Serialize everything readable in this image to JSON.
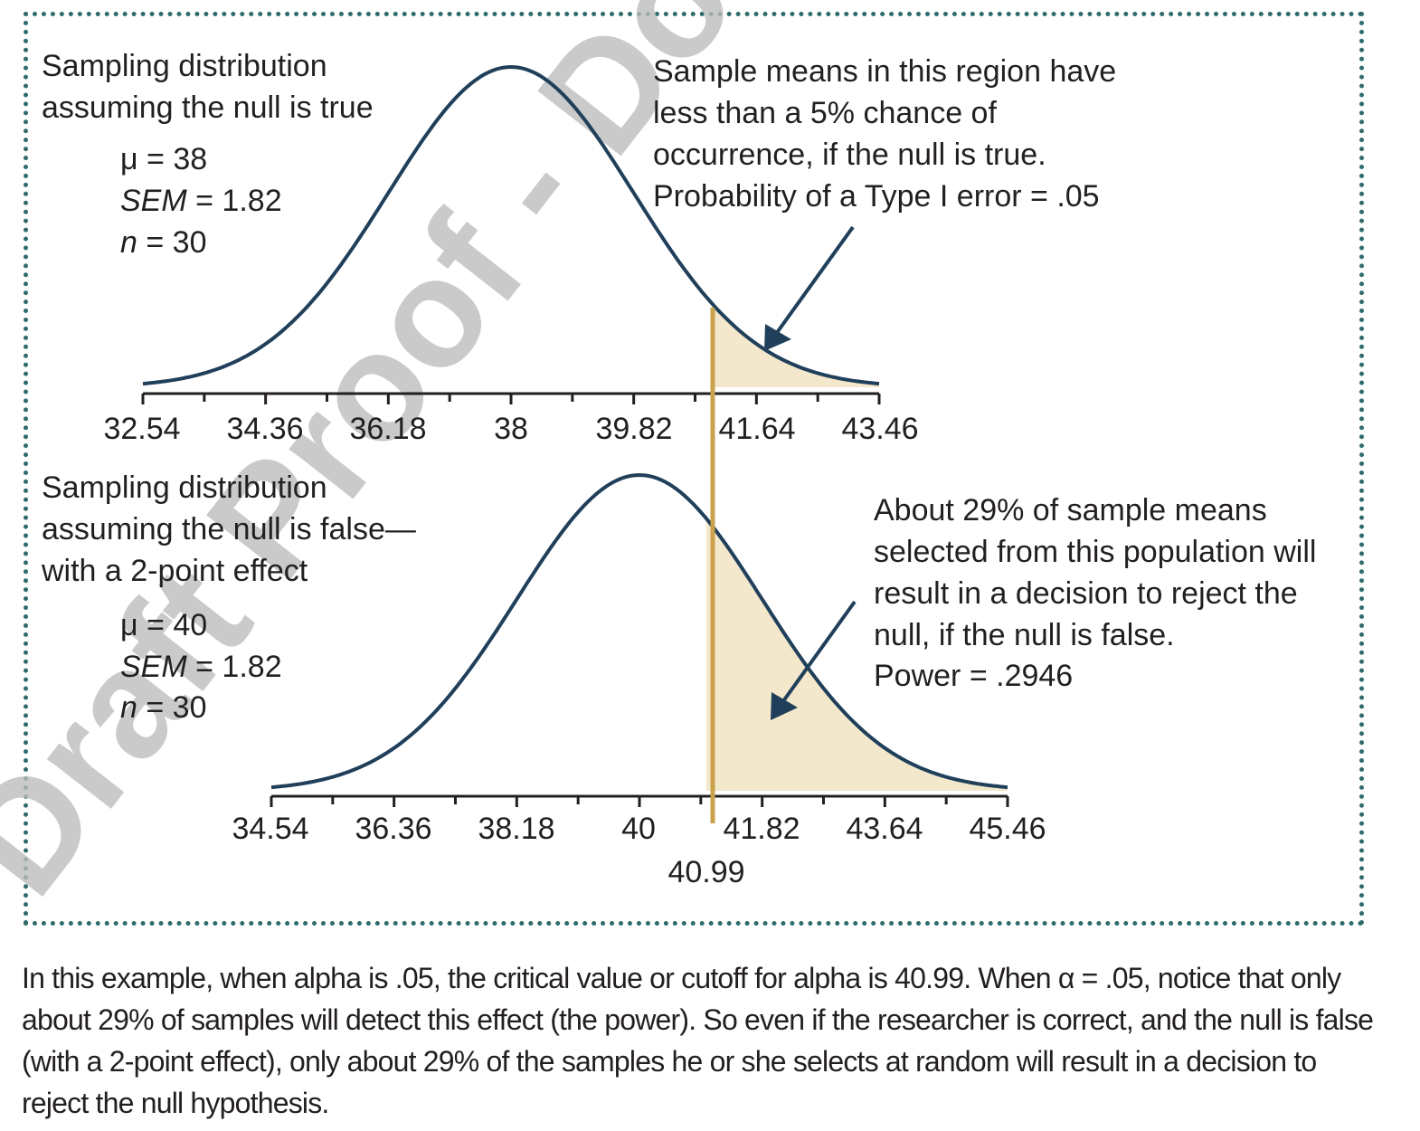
{
  "colors": {
    "curve": "#1f3f5a",
    "shade": "#f3e8cc",
    "cutoff_line": "#c9a24b",
    "border": "#2e6b6b",
    "watermark": "#bdbdbd",
    "text": "#231f20"
  },
  "watermark": "Draft Proof - Do not copy",
  "top_panel": {
    "title_line1": "Sampling distribution",
    "title_line2": "assuming the null is true",
    "mu_label": "μ = 38",
    "sem_symbol": "SEM",
    "sem_value": " = 1.82",
    "n_symbol": "n",
    "n_value": " = 30",
    "annotation": [
      "Sample means in this region have",
      "less than a 5% chance of",
      "occurrence, if the null is true.",
      "Probability of a Type I error = .05"
    ],
    "ticks": [
      "32.54",
      "34.36",
      "36.18",
      "38",
      "39.82",
      "41.64",
      "43.46"
    ]
  },
  "bottom_panel": {
    "title_line1": "Sampling distribution",
    "title_line2": "assuming the null is false—",
    "title_line3": "with a 2-point effect",
    "mu_label": "μ = 40",
    "sem_symbol": "SEM",
    "sem_value": " = 1.82",
    "n_symbol": "n",
    "n_value": " = 30",
    "annotation": [
      "About 29% of sample means",
      "selected from this population will",
      "result in a decision to reject the",
      "null, if the null is false.",
      "Power = .2946"
    ],
    "ticks": [
      "34.54",
      "36.36",
      "38.18",
      "40",
      "41.82",
      "43.64",
      "45.46"
    ],
    "cutoff_label": "40.99"
  },
  "caption": "In this example, when alpha is .05, the critical value or cutoff for alpha is 40.99. When α = .05, notice that only about 29% of samples will detect this effect (the power). So even if the researcher is correct, and the null is false (with a 2-point effect), only about 29% of the samples he or she selects at random will result in a decision to reject the null hypothesis.",
  "chart_data": [
    {
      "type": "area",
      "distribution": "normal",
      "mean": 38,
      "sem": 1.82,
      "n": 30,
      "x_ticks": [
        32.54,
        34.36,
        36.18,
        38,
        39.82,
        41.64,
        43.46
      ],
      "shaded_region": [
        40.99,
        43.46
      ]
    },
    {
      "type": "area",
      "distribution": "normal",
      "mean": 40,
      "sem": 1.82,
      "n": 30,
      "x_ticks": [
        34.54,
        36.36,
        38.18,
        40,
        41.82,
        43.64,
        45.46
      ],
      "shaded_region": [
        40.99,
        45.46
      ],
      "cutoff": 40.99
    }
  ]
}
